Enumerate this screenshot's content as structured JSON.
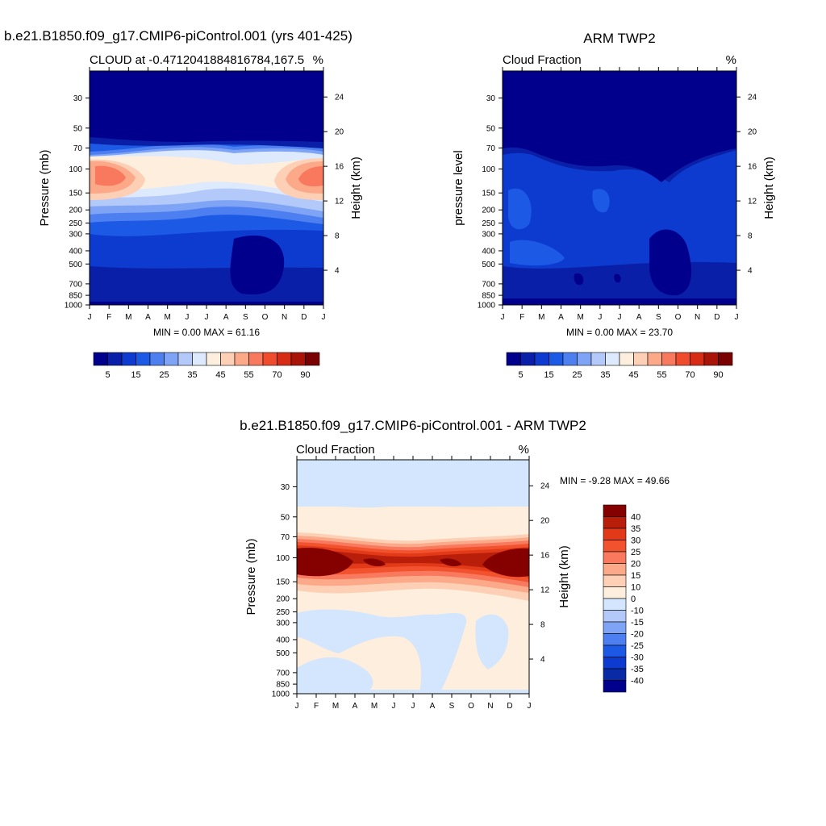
{
  "colors": {
    "model_obs_scale": [
      "#00008c",
      "#0a1fa8",
      "#0d3bd0",
      "#1c5ae6",
      "#4d7ff0",
      "#7fa4f5",
      "#b3c9f9",
      "#dde9fd",
      "#fdeedd",
      "#fdd0b6",
      "#fca98a",
      "#f9795e",
      "#ef4b2d",
      "#d62b15",
      "#a81408",
      "#7a0101"
    ],
    "model_obs_labels": [
      "5",
      "15",
      "25",
      "35",
      "45",
      "55",
      "70",
      "90"
    ],
    "diff_scale": [
      "#00008c",
      "#0a2aa5",
      "#0d3bd0",
      "#1c5ae6",
      "#4d7ff0",
      "#7fa4f5",
      "#b3c9f9",
      "#d4e6fd",
      "#fdeedd",
      "#fdd0b6",
      "#fca98a",
      "#f9795e",
      "#f2522e",
      "#e23a18",
      "#b91e0b",
      "#850100"
    ],
    "diff_labels": [
      "40",
      "35",
      "30",
      "25",
      "20",
      "15",
      "10",
      "0",
      "-10",
      "-15",
      "-20",
      "-25",
      "-30",
      "-35",
      "-40"
    ]
  },
  "chart_data": [
    {
      "type": "heatmap",
      "title": "b.e21.B1850.f09_g17.CMIP6-piControl.001 (yrs 401-425)",
      "subtitle_left": "CLOUD at -0.4712041884816784,167.5",
      "subtitle_right": "%",
      "ylabel": "Pressure (mb)",
      "ylabel_right": "Height (km)",
      "x_ticks": [
        "J",
        "F",
        "M",
        "A",
        "M",
        "J",
        "J",
        "A",
        "S",
        "O",
        "N",
        "D",
        "J"
      ],
      "y_ticks": [
        "30",
        "50",
        "70",
        "100",
        "150",
        "200",
        "250",
        "300",
        "400",
        "500",
        "700",
        "850",
        "1000"
      ],
      "y_ticks_right": [
        "24",
        "20",
        "16",
        "12",
        "8",
        "4"
      ],
      "stats": "MIN =   0.00 MAX =  61.16",
      "min": 0.0,
      "max": 61.16,
      "units": "%"
    },
    {
      "type": "heatmap",
      "title": "ARM TWP2",
      "subtitle_left": "Cloud Fraction",
      "subtitle_right": "%",
      "ylabel": "pressure level",
      "ylabel_right": "Height (km)",
      "x_ticks": [
        "J",
        "F",
        "M",
        "A",
        "M",
        "J",
        "J",
        "A",
        "S",
        "O",
        "N",
        "D",
        "J"
      ],
      "y_ticks": [
        "30",
        "50",
        "70",
        "100",
        "150",
        "200",
        "250",
        "300",
        "400",
        "500",
        "700",
        "850",
        "1000"
      ],
      "y_ticks_right": [
        "24",
        "20",
        "16",
        "12",
        "8",
        "4"
      ],
      "stats": "MIN =   0.00 MAX =  23.70",
      "min": 0.0,
      "max": 23.7,
      "units": "%"
    },
    {
      "type": "heatmap",
      "title": "b.e21.B1850.f09_g17.CMIP6-piControl.001 - ARM TWP2",
      "subtitle_left": "Cloud Fraction",
      "subtitle_right": "%",
      "ylabel": "Pressure (mb)",
      "ylabel_right": "Height (km)",
      "x_ticks": [
        "J",
        "F",
        "M",
        "A",
        "M",
        "J",
        "J",
        "A",
        "S",
        "O",
        "N",
        "D",
        "J"
      ],
      "y_ticks": [
        "30",
        "50",
        "70",
        "100",
        "150",
        "200",
        "250",
        "300",
        "400",
        "500",
        "700",
        "850",
        "1000"
      ],
      "y_ticks_right": [
        "24",
        "20",
        "16",
        "12",
        "8",
        "4"
      ],
      "stats": "MIN =  -9.28 MAX =  49.66",
      "min": -9.28,
      "max": 49.66,
      "units": "%"
    }
  ]
}
